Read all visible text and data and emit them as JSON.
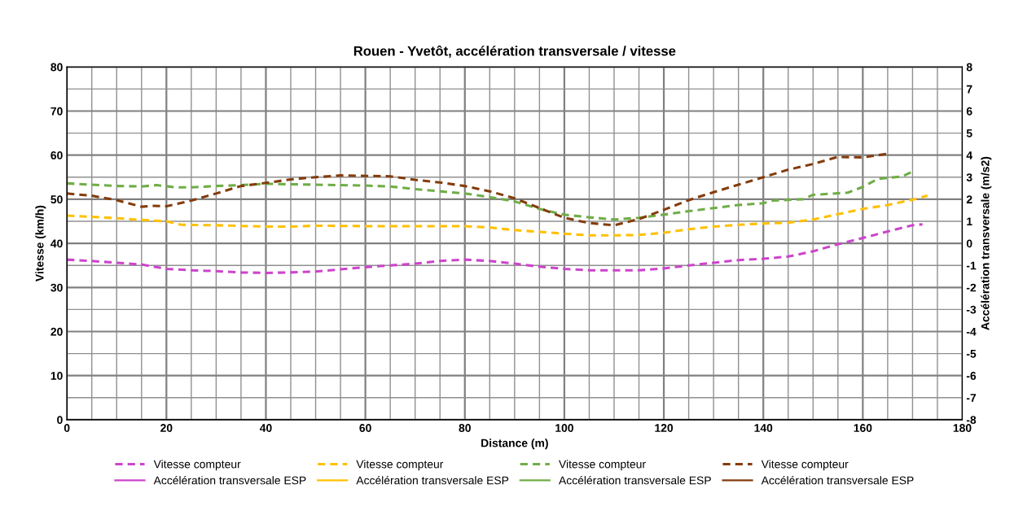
{
  "chart_data": {
    "type": "line",
    "title": "Rouen - Yvetôt, accélération transversale / vitesse",
    "xlabel": "Distance (m)",
    "ylabel": "Vitesse (km/h)",
    "y2label": "Accélération transversale (m/s2)",
    "xlim": [
      0,
      180
    ],
    "xticks": [
      0,
      20,
      40,
      60,
      80,
      100,
      120,
      140,
      160,
      180
    ],
    "ylim": [
      0,
      80
    ],
    "yticks": [
      0,
      10,
      20,
      30,
      40,
      50,
      60,
      70,
      80
    ],
    "y2lim": [
      -8,
      8
    ],
    "y2ticks": [
      -8,
      -7,
      -6,
      -5,
      -4,
      -3,
      -2,
      -1,
      0,
      1,
      2,
      3,
      4,
      5,
      6,
      7,
      8
    ],
    "grid": true,
    "legend": "bottom",
    "marker": "none",
    "series": [
      {
        "name": "Vitesse compteur",
        "color": "#cc44cc",
        "line_style": "dashed",
        "x": [
          0,
          5,
          10,
          15,
          20,
          25,
          30,
          35,
          40,
          45,
          50,
          55,
          60,
          65,
          70,
          75,
          80,
          85,
          90,
          95,
          100,
          105,
          110,
          115,
          120,
          125,
          130,
          135,
          140,
          145,
          150,
          155,
          160,
          165,
          170,
          172
        ],
        "values": [
          36.3,
          36,
          35.6,
          35.2,
          34.2,
          33.9,
          33.7,
          33.4,
          33.3,
          33.4,
          33.6,
          34.1,
          34.6,
          35,
          35.4,
          36,
          36.3,
          36,
          35.4,
          34.7,
          34.2,
          33.9,
          33.9,
          33.9,
          34.3,
          35,
          35.6,
          36.2,
          36.5,
          37,
          38.2,
          39.8,
          41.2,
          42.7,
          44.1,
          44.3
        ]
      },
      {
        "name": "Vitesse compteur",
        "color": "#ffc000",
        "line_style": "dashed",
        "x": [
          0,
          5,
          10,
          15,
          20,
          23,
          30,
          40,
          45,
          50,
          60,
          70,
          80,
          85,
          90,
          95,
          100,
          105,
          110,
          115,
          120,
          125,
          130,
          135,
          140,
          145,
          150,
          155,
          160,
          165,
          170,
          173
        ],
        "values": [
          46.3,
          46,
          45.7,
          45.3,
          45,
          44.2,
          44.1,
          43.8,
          43.8,
          44,
          43.9,
          43.9,
          43.9,
          43.6,
          43,
          42.6,
          42.2,
          41.8,
          41.8,
          41.9,
          42.4,
          43.2,
          43.8,
          44.2,
          44.5,
          44.7,
          45.4,
          46.6,
          47.8,
          48.7,
          49.9,
          50.8
        ]
      },
      {
        "name": "Vitesse compteur",
        "color": "#70ad47",
        "line_style": "dashed",
        "x": [
          0,
          5,
          10,
          15,
          18,
          22,
          25,
          30,
          35,
          40,
          50,
          60,
          65,
          70,
          75,
          80,
          85,
          90,
          95,
          100,
          105,
          110,
          115,
          120,
          125,
          130,
          135,
          140,
          142,
          148,
          150,
          157,
          160,
          163,
          168,
          170
        ],
        "values": [
          53.6,
          53.3,
          53,
          52.9,
          53.2,
          52.7,
          52.7,
          53,
          53.2,
          53.5,
          53.3,
          53.1,
          52.9,
          52.3,
          51.8,
          51.3,
          50.5,
          49.5,
          47.8,
          46.5,
          45.9,
          45.4,
          45.8,
          46.5,
          47.3,
          48,
          48.7,
          49.1,
          49.7,
          50,
          51,
          51.5,
          52.8,
          54.6,
          55.2,
          56.3
        ]
      },
      {
        "name": "Vitesse compteur",
        "color": "#843c0c",
        "line_style": "dashed",
        "x": [
          0,
          5,
          10,
          15,
          17,
          20,
          25,
          30,
          35,
          40,
          45,
          50,
          55,
          60,
          65,
          70,
          75,
          80,
          85,
          90,
          95,
          100,
          105,
          110,
          115,
          120,
          125,
          130,
          135,
          140,
          145,
          150,
          155,
          160,
          165
        ],
        "values": [
          51.3,
          50.8,
          49.8,
          48.3,
          48.5,
          48.4,
          49.7,
          51.3,
          53,
          53.7,
          54.5,
          55,
          55.4,
          55.3,
          55.2,
          54.4,
          53.8,
          53,
          51.8,
          50.2,
          48,
          45.8,
          44.6,
          44.1,
          45.5,
          47.6,
          49.8,
          51.6,
          53.3,
          55,
          56.7,
          58,
          59.6,
          59.5,
          60.3
        ]
      },
      {
        "name": "Accélération transversale ESP",
        "color": "#cc44cc",
        "line_style": "solid"
      },
      {
        "name": "Accélération transversale ESP",
        "color": "#ffc000",
        "line_style": "solid"
      },
      {
        "name": "Accélération transversale ESP",
        "color": "#70ad47",
        "line_style": "solid"
      },
      {
        "name": "Accélération transversale ESP",
        "color": "#843c0c",
        "line_style": "solid"
      }
    ]
  }
}
